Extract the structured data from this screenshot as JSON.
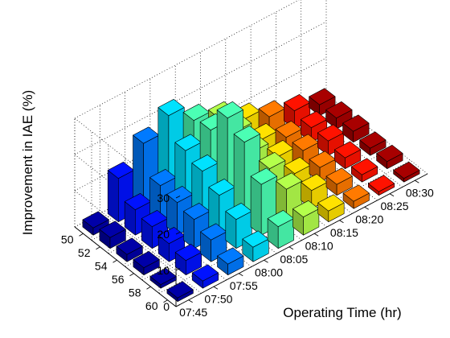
{
  "chart_data": {
    "type": "bar3",
    "zlabel": "Improvement in IAE (%)",
    "xlabel": "Operating Time (hr)",
    "ylabel": "",
    "zlim": [
      0,
      30
    ],
    "zticks": [
      "0",
      "10",
      "20",
      "30"
    ],
    "time_ticks": [
      "07:45",
      "07:50",
      "07:55",
      "08:00",
      "08:05",
      "08:10",
      "08:15",
      "08:20",
      "08:25",
      "08:30"
    ],
    "row_ticks": [
      "50",
      "52",
      "54",
      "56",
      "58",
      "60"
    ],
    "grid": true,
    "colormap": "jet",
    "values": [
      [
        2,
        12,
        18,
        22,
        17,
        14,
        10,
        7,
        5,
        3
      ],
      [
        3,
        7,
        10,
        16,
        18,
        14,
        8,
        5,
        4,
        3
      ],
      [
        2,
        6,
        9,
        14,
        25,
        12,
        7,
        5,
        4,
        3
      ],
      [
        2,
        5,
        8,
        11,
        22,
        11,
        6,
        4,
        3,
        2
      ],
      [
        1,
        4,
        6,
        8,
        14,
        9,
        5,
        3,
        2,
        2
      ],
      [
        1,
        2,
        3,
        4,
        6,
        5,
        3,
        2,
        1,
        1
      ]
    ]
  }
}
